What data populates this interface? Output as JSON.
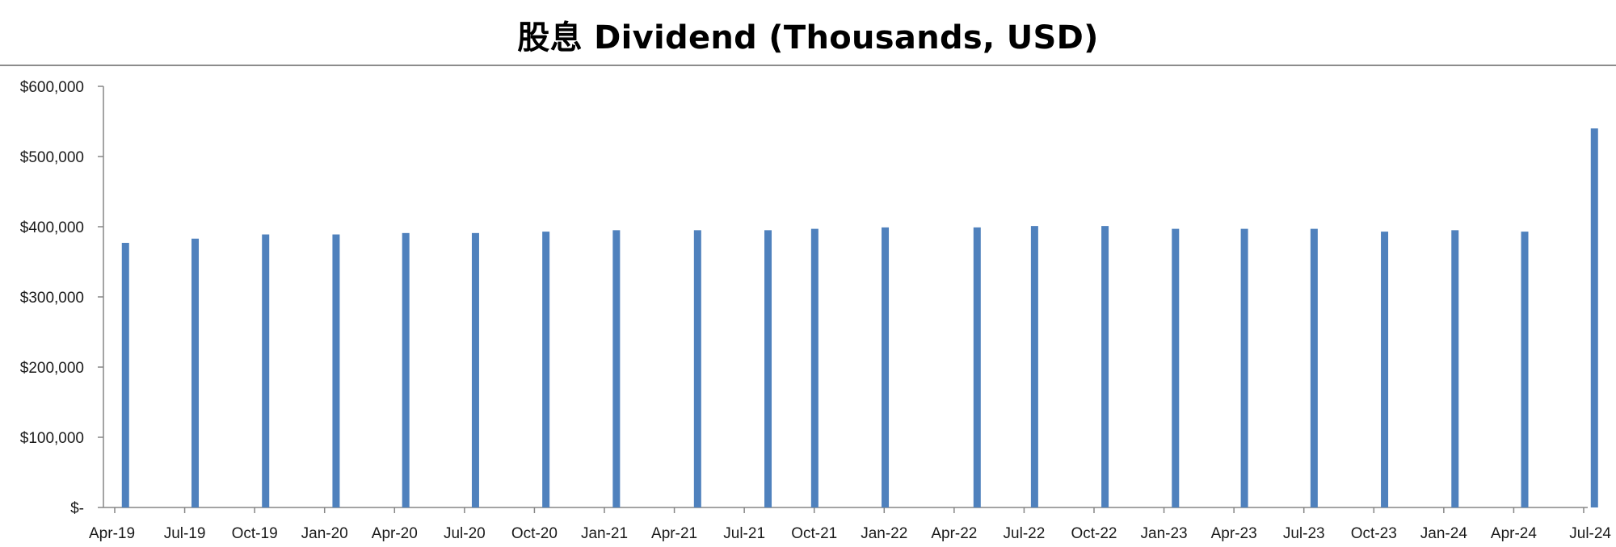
{
  "chart_data": {
    "type": "bar",
    "title": "股息 Dividend (Thousands, USD)",
    "xlabel": "",
    "ylabel": "",
    "y_ticks": [
      "$-",
      "$100,000",
      "$200,000",
      "$300,000",
      "$400,000",
      "$500,000",
      "$600,000"
    ],
    "ylim": [
      0,
      600000
    ],
    "x_tick_labels": [
      "Apr-19",
      "Jul-19",
      "Oct-19",
      "Jan-20",
      "Apr-20",
      "Jul-20",
      "Oct-20",
      "Jan-21",
      "Apr-21",
      "Jul-21",
      "Oct-21",
      "Jan-22",
      "Apr-22",
      "Jul-22",
      "Oct-22",
      "Jan-23",
      "Apr-23",
      "Jul-23",
      "Oct-23",
      "Jan-24",
      "Apr-24",
      "Jul-24"
    ],
    "x_range": [
      "2019-04-01",
      "2024-07-01"
    ],
    "points": [
      {
        "date": "2019-04-15",
        "value": 377000
      },
      {
        "date": "2019-07-15",
        "value": 383000
      },
      {
        "date": "2019-10-15",
        "value": 389000
      },
      {
        "date": "2020-01-15",
        "value": 389000
      },
      {
        "date": "2020-04-15",
        "value": 391000
      },
      {
        "date": "2020-07-15",
        "value": 391000
      },
      {
        "date": "2020-10-15",
        "value": 393000
      },
      {
        "date": "2021-01-15",
        "value": 395000
      },
      {
        "date": "2021-05-01",
        "value": 395000
      },
      {
        "date": "2021-08-01",
        "value": 395000
      },
      {
        "date": "2021-10-01",
        "value": 397000
      },
      {
        "date": "2022-01-01",
        "value": 399000
      },
      {
        "date": "2022-05-01",
        "value": 399000
      },
      {
        "date": "2022-07-15",
        "value": 401000
      },
      {
        "date": "2022-10-15",
        "value": 401000
      },
      {
        "date": "2023-01-15",
        "value": 397000
      },
      {
        "date": "2023-04-15",
        "value": 397000
      },
      {
        "date": "2023-07-15",
        "value": 397000
      },
      {
        "date": "2023-10-15",
        "value": 393000
      },
      {
        "date": "2024-01-15",
        "value": 395000
      },
      {
        "date": "2024-04-15",
        "value": 393000
      },
      {
        "date": "2024-07-15",
        "value": 540000
      }
    ],
    "grid": false,
    "legend": "none",
    "bar_color": "#4f81bd",
    "axis_color": "#868686"
  }
}
